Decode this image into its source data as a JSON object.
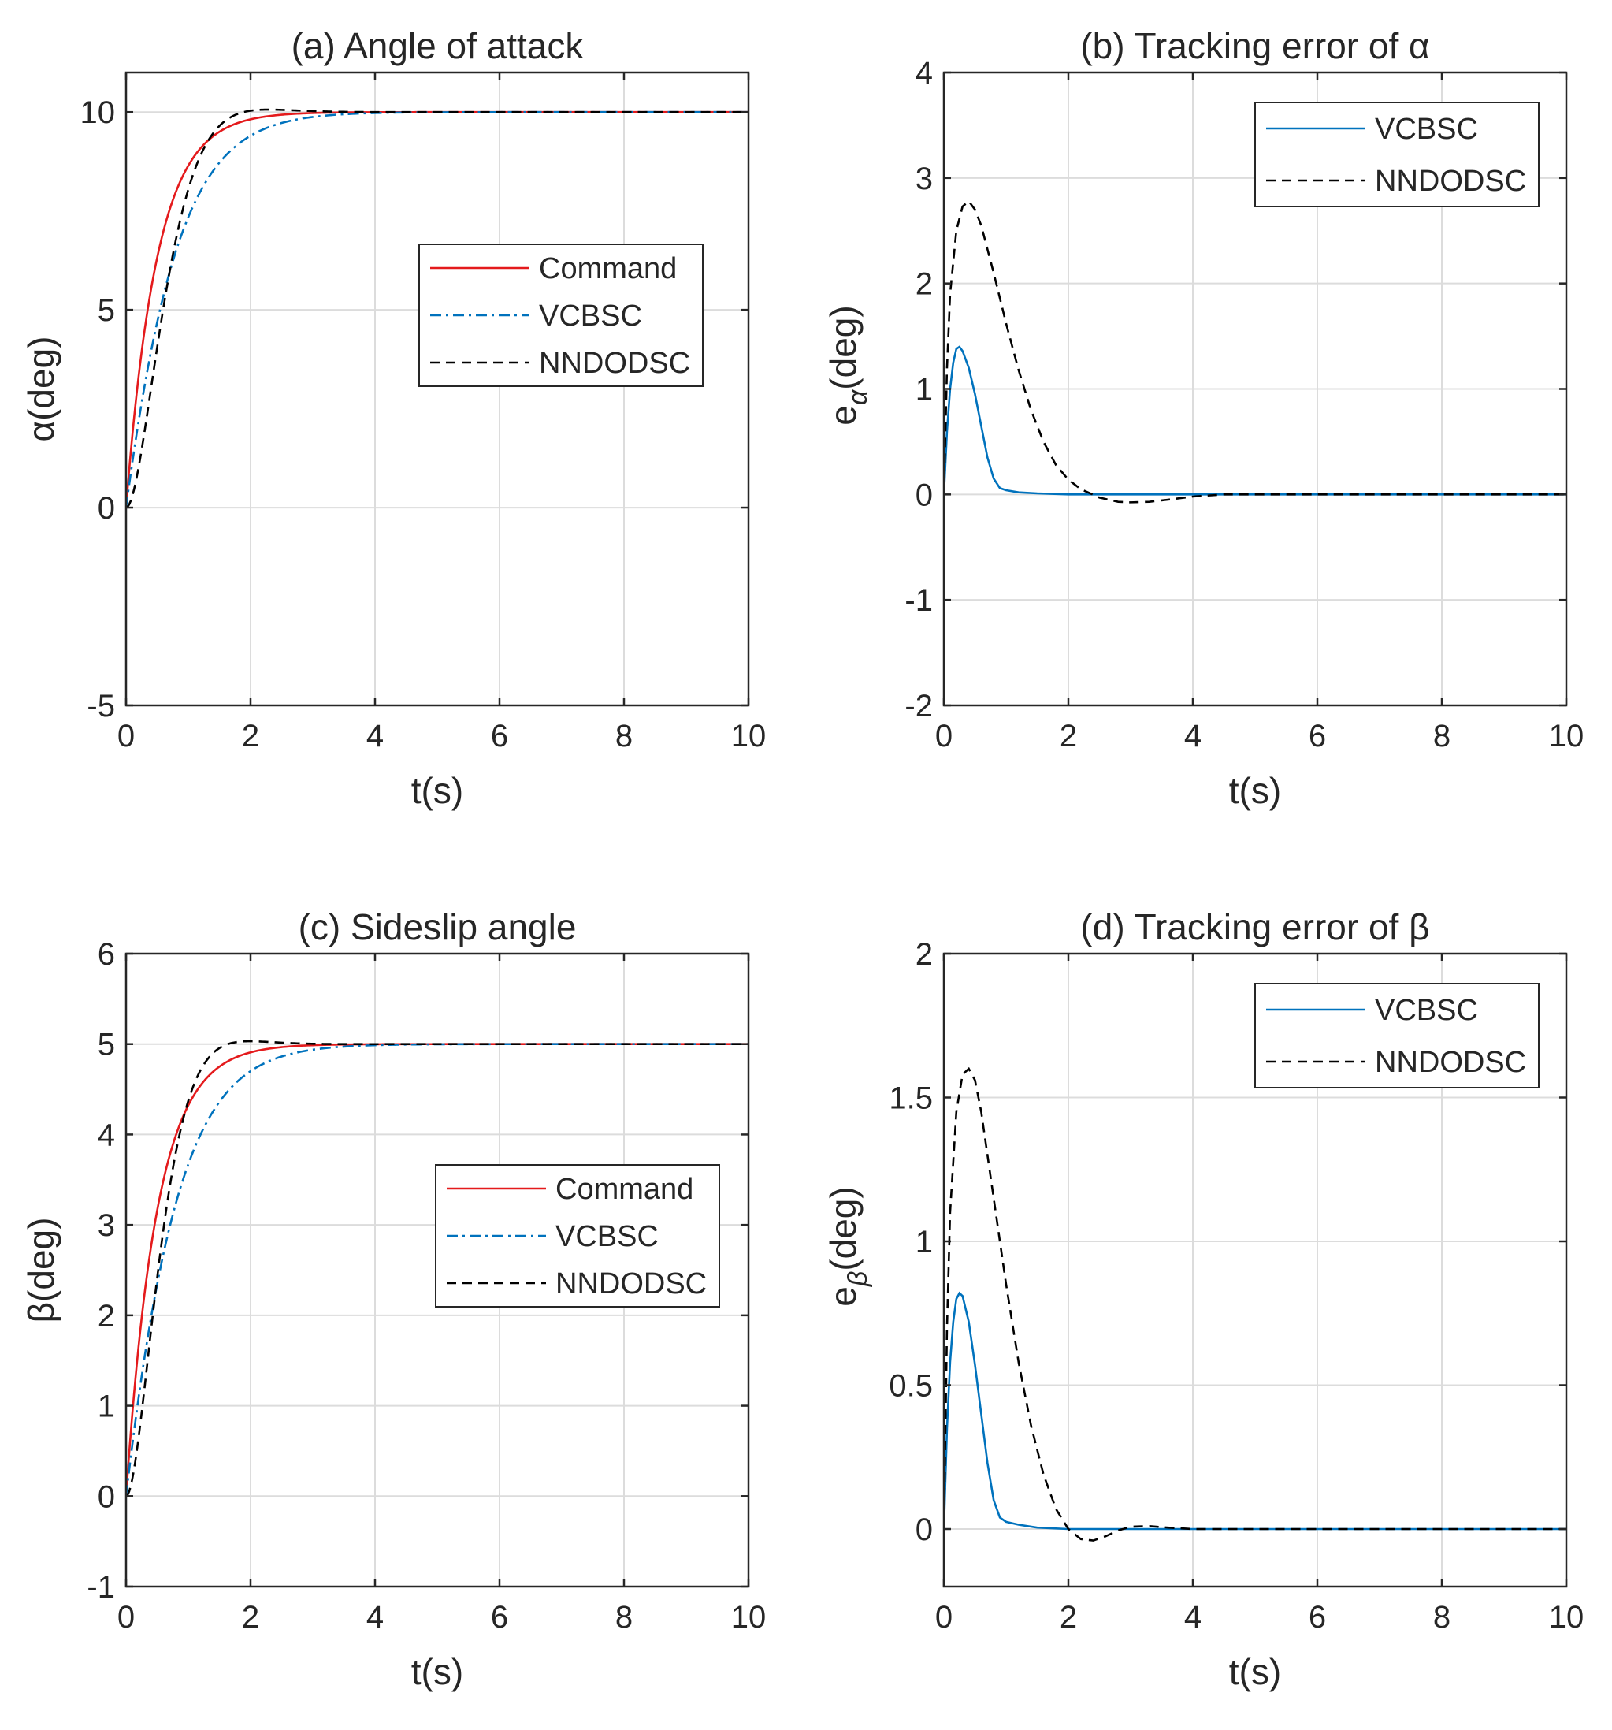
{
  "colors": {
    "command": "#e41a1c",
    "vcbsc": "#0072bd",
    "nndodsc": "#000000",
    "grid": "#dcdcdc",
    "frame": "#262626"
  },
  "chart_data": [
    {
      "id": "a",
      "type": "line",
      "title": "(a) Angle of attack",
      "xlabel": "t(s)",
      "ylabel": "α(deg)",
      "xlim": [
        0,
        10
      ],
      "ylim": [
        -5,
        11
      ],
      "xticks": [
        0,
        2,
        4,
        6,
        8,
        10
      ],
      "yticks": [
        -5,
        0,
        5,
        10
      ],
      "legend_position": "middle-right",
      "series": [
        {
          "name": "Command",
          "key": "command",
          "style": "solid",
          "model": "first_order",
          "final": 10,
          "tau": 0.5
        },
        {
          "name": "VCBSC",
          "key": "vcbsc",
          "style": "dashdot",
          "model": "s_curve",
          "final": 10,
          "tau": 0.55
        },
        {
          "name": "NNDODSC",
          "key": "nndodsc",
          "style": "dashed",
          "model": "second_order",
          "final": 10,
          "wn": 2.6,
          "zeta": 0.85
        }
      ]
    },
    {
      "id": "b",
      "type": "line",
      "title": "(b) Tracking error of α",
      "xlabel": "t(s)",
      "ylabel": "e",
      "ylabel_sub": "α",
      "ylabel_suffix": "(deg)",
      "xlim": [
        0,
        10
      ],
      "ylim": [
        -2,
        4
      ],
      "xticks": [
        0,
        2,
        4,
        6,
        8,
        10
      ],
      "yticks": [
        -2,
        -1,
        0,
        1,
        2,
        3,
        4
      ],
      "legend_position": "top-right",
      "series": [
        {
          "name": "VCBSC",
          "key": "vcbsc",
          "style": "solid",
          "x": [
            0,
            0.05,
            0.1,
            0.15,
            0.2,
            0.25,
            0.3,
            0.4,
            0.5,
            0.6,
            0.7,
            0.8,
            0.9,
            1.0,
            1.2,
            1.5,
            2.0,
            3.0,
            10.0
          ],
          "y": [
            0,
            0.6,
            1.0,
            1.25,
            1.38,
            1.4,
            1.36,
            1.2,
            0.95,
            0.65,
            0.35,
            0.15,
            0.06,
            0.04,
            0.02,
            0.01,
            0.0,
            0.0,
            0.0
          ]
        },
        {
          "name": "NNDODSC",
          "key": "nndodsc",
          "style": "dashed",
          "x": [
            0,
            0.05,
            0.1,
            0.2,
            0.3,
            0.4,
            0.5,
            0.6,
            0.8,
            1.0,
            1.2,
            1.4,
            1.6,
            1.8,
            2.0,
            2.2,
            2.5,
            2.8,
            3.0,
            3.3,
            3.6,
            4.0,
            4.5,
            5.0,
            6.0,
            10.0
          ],
          "y": [
            0,
            1.2,
            1.9,
            2.5,
            2.73,
            2.78,
            2.7,
            2.55,
            2.1,
            1.62,
            1.18,
            0.8,
            0.5,
            0.28,
            0.14,
            0.05,
            -0.03,
            -0.07,
            -0.075,
            -0.07,
            -0.05,
            -0.02,
            0.0,
            0.0,
            0.0,
            0.0
          ]
        }
      ]
    },
    {
      "id": "c",
      "type": "line",
      "title": "(c) Sideslip angle",
      "xlabel": "t(s)",
      "ylabel": "β(deg)",
      "xlim": [
        0,
        10
      ],
      "ylim": [
        -1,
        6
      ],
      "xticks": [
        0,
        2,
        4,
        6,
        8,
        10
      ],
      "yticks": [
        -1,
        0,
        1,
        2,
        3,
        4,
        5,
        6
      ],
      "legend_position": "middle-right",
      "series": [
        {
          "name": "Command",
          "key": "command",
          "style": "solid",
          "model": "first_order",
          "final": 5,
          "tau": 0.5
        },
        {
          "name": "VCBSC",
          "key": "vcbsc",
          "style": "dashdot",
          "model": "s_curve",
          "final": 5,
          "tau": 0.55
        },
        {
          "name": "NNDODSC",
          "key": "nndodsc",
          "style": "dashed",
          "model": "second_order",
          "final": 5,
          "wn": 3.0,
          "zeta": 0.85
        }
      ]
    },
    {
      "id": "d",
      "type": "line",
      "title": "(d) Tracking error of β",
      "xlabel": "t(s)",
      "ylabel": "e",
      "ylabel_sub": "β",
      "ylabel_suffix": "(deg)",
      "xlim": [
        0,
        10
      ],
      "ylim": [
        -0.2,
        2
      ],
      "xticks": [
        0,
        2,
        4,
        6,
        8,
        10
      ],
      "yticks": [
        0,
        0.5,
        1,
        1.5,
        2
      ],
      "legend_position": "top-right",
      "series": [
        {
          "name": "VCBSC",
          "key": "vcbsc",
          "style": "solid",
          "x": [
            0,
            0.05,
            0.1,
            0.15,
            0.2,
            0.25,
            0.3,
            0.4,
            0.5,
            0.6,
            0.7,
            0.8,
            0.9,
            1.0,
            1.2,
            1.5,
            2.0,
            3.0,
            10.0
          ],
          "y": [
            0,
            0.35,
            0.58,
            0.72,
            0.8,
            0.82,
            0.81,
            0.72,
            0.57,
            0.4,
            0.23,
            0.1,
            0.04,
            0.025,
            0.015,
            0.005,
            0.0,
            0.0,
            0.0
          ]
        },
        {
          "name": "NNDODSC",
          "key": "nndodsc",
          "style": "dashed",
          "x": [
            0,
            0.05,
            0.1,
            0.2,
            0.3,
            0.4,
            0.5,
            0.6,
            0.8,
            1.0,
            1.2,
            1.4,
            1.6,
            1.8,
            2.0,
            2.2,
            2.4,
            2.6,
            2.8,
            3.0,
            3.3,
            3.6,
            4.0,
            5.0,
            10.0
          ],
          "y": [
            0,
            0.7,
            1.1,
            1.45,
            1.58,
            1.6,
            1.56,
            1.45,
            1.15,
            0.85,
            0.58,
            0.36,
            0.19,
            0.07,
            0.0,
            -0.035,
            -0.04,
            -0.025,
            -0.005,
            0.008,
            0.01,
            0.005,
            0.0,
            0.0,
            0.0
          ]
        }
      ]
    }
  ]
}
